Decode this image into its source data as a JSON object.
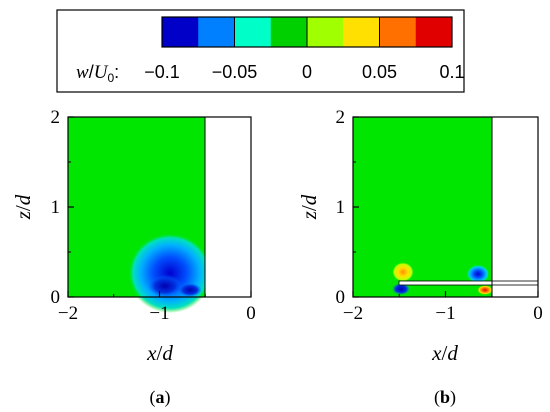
{
  "colorbar": {
    "label_w": "w",
    "label_slash": "/",
    "label_U": "U",
    "label_sub": "0",
    "label_colon": ":",
    "ticks": [
      "−0.1",
      "−0.05",
      "0",
      "0.05",
      "0.1"
    ],
    "range": [
      -0.1,
      0.1
    ],
    "colors": [
      "#0000c8",
      "#0080ff",
      "#00ffc8",
      "#00d000",
      "#a0ff00",
      "#ffe000",
      "#ff7000",
      "#e00000"
    ]
  },
  "chart_data": [
    {
      "type": "heatmap",
      "caption_open": "(",
      "caption_letter": "a",
      "caption_close": ")",
      "xlabel_var": "x",
      "xlabel_sep": "/",
      "xlabel_d": "d",
      "ylabel_var": "z",
      "ylabel_sep": "/",
      "ylabel_d": "d",
      "xlim": [
        -2,
        0
      ],
      "ylim": [
        0,
        2
      ],
      "xticks": [
        "−2",
        "−1",
        "0"
      ],
      "yticks": [
        "0",
        "1",
        "2"
      ],
      "field_value": 0,
      "field_color": "#00e600",
      "blank_region_x": [
        -0.5,
        0
      ],
      "features": [
        {
          "x": -1.0,
          "z": 0.12,
          "value": -0.05
        },
        {
          "x": -0.95,
          "z": 0.1,
          "value": -0.1
        },
        {
          "x": -0.7,
          "z": 0.08,
          "value": -0.1
        }
      ]
    },
    {
      "type": "heatmap",
      "caption_open": "(",
      "caption_letter": "b",
      "caption_close": ")",
      "xlabel_var": "x",
      "xlabel_sep": "/",
      "xlabel_d": "d",
      "ylabel_var": "z",
      "ylabel_sep": "/",
      "ylabel_d": "d",
      "xlim": [
        -2,
        0
      ],
      "ylim": [
        0,
        2
      ],
      "xticks": [
        "−2",
        "−1",
        "0"
      ],
      "yticks": [
        "0",
        "1",
        "2"
      ],
      "field_value": 0,
      "field_color": "#00e600",
      "blank_region_x": [
        -0.5,
        0
      ],
      "plate": {
        "x": [
          -1.5,
          0
        ],
        "z": 0.15
      },
      "features": [
        {
          "x": -1.5,
          "z": 0.25,
          "value": 0.05
        },
        {
          "x": -1.5,
          "z": 0.08,
          "value": -0.1
        },
        {
          "x": -0.62,
          "z": 0.22,
          "value": -0.05
        },
        {
          "x": -0.55,
          "z": 0.08,
          "value": 0.1
        }
      ]
    }
  ]
}
